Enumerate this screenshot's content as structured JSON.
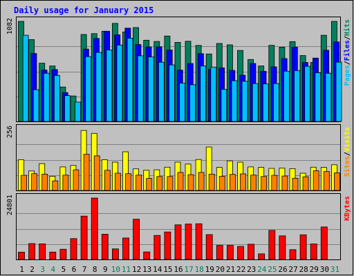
{
  "chart_data": {
    "type": "bar",
    "title": "Daily usage for January 2015",
    "days": [
      "1",
      "2",
      "3",
      "4",
      "5",
      "6",
      "7",
      "8",
      "9",
      "10",
      "11",
      "12",
      "13",
      "14",
      "15",
      "16",
      "17",
      "18",
      "19",
      "20",
      "21",
      "22",
      "23",
      "24",
      "25",
      "26",
      "27",
      "28",
      "29",
      "30",
      "31"
    ],
    "weekend_days": [
      "3",
      "4",
      "10",
      "11",
      "17",
      "18",
      "24",
      "25",
      "31"
    ],
    "panels": [
      {
        "id": "pages-files-hits",
        "ymax": 1082,
        "ymax_label": "1082",
        "series": [
          {
            "name": "Hits",
            "color": "#00805c",
            "values": [
              1082,
              885,
              630,
              600,
              372,
              275,
              940,
              950,
              975,
              1060,
              968,
              1015,
              878,
              865,
              924,
              855,
              867,
              822,
              730,
              843,
              828,
              768,
              670,
              600,
              823,
              803,
              863,
              713,
              638,
              932,
              1082
            ]
          },
          {
            "name": "Files",
            "color": "#0000ff",
            "values": [
              0,
              735,
              556,
              561,
              312,
              0,
              782,
              898,
              975,
              937,
              1009,
              832,
              805,
              807,
              773,
              555,
              627,
              733,
              563,
              580,
              552,
              500,
              627,
              542,
              590,
              680,
              803,
              638,
              685,
              770,
              860
            ]
          },
          {
            "name": "Pages",
            "color": "#00bfff",
            "values": [
              932,
              343,
              520,
              498,
              279,
              210,
              701,
              747,
              774,
              826,
              900,
              710,
              698,
              640,
              611,
              415,
              397,
              600,
              588,
              347,
              440,
              434,
              410,
              406,
              410,
              543,
              550,
              596,
              526,
              520,
              641
            ]
          }
        ]
      },
      {
        "id": "sites-visits",
        "ymax": 256,
        "ymax_label": "256",
        "series": [
          {
            "name": "Visits",
            "color": "#ffff00",
            "values": [
              128,
              81,
              112,
              59,
              98,
              104,
              250,
              238,
              128,
              118,
              161,
              90,
              84,
              86,
              97,
              118,
              110,
              129,
              181,
              96,
              123,
              118,
              98,
              96,
              92,
              93,
              91,
              72,
              97,
              96,
              107
            ]
          },
          {
            "name": "Sites",
            "color": "#ff8000",
            "values": [
              63,
              70,
              68,
              40,
              64,
              86,
              151,
              144,
              84,
              72,
              70,
              64,
              50,
              58,
              58,
              75,
              66,
              75,
              68,
              59,
              67,
              69,
              64,
              58,
              63,
              60,
              51,
              57,
              82,
              79,
              73
            ]
          }
        ]
      },
      {
        "id": "kbytes",
        "ymax": 24801,
        "ymax_label": "24801",
        "series": [
          {
            "name": "KBytes",
            "color": "#ff0000",
            "values": [
              2963,
              6410,
              6300,
              2986,
              4134,
              8420,
              17500,
              24801,
              10200,
              4260,
              8655,
              16240,
              3026,
              9700,
              11090,
              14000,
              14300,
              14400,
              10020,
              5680,
              5680,
              5280,
              6163,
              2263,
              11720,
              9530,
              3950,
              9960,
              6263,
              13120,
              0
            ]
          }
        ]
      }
    ],
    "legends": [
      {
        "panel": "pages-files-hits",
        "parts": [
          {
            "text": "Pages",
            "color": "#00bfff"
          },
          {
            "text": "/",
            "color": "#000000"
          },
          {
            "text": "Files",
            "color": "#0000ff"
          },
          {
            "text": "/",
            "color": "#000000"
          },
          {
            "text": "Hits",
            "color": "#00805c"
          }
        ]
      },
      {
        "panel": "sites-visits",
        "parts": [
          {
            "text": "Sites",
            "color": "#ff8000"
          },
          {
            "text": "/",
            "color": "#000000"
          },
          {
            "text": "Visits",
            "color": "#ffff00"
          }
        ]
      },
      {
        "panel": "kbytes",
        "parts": [
          {
            "text": "KBytes",
            "color": "#ff0000"
          }
        ]
      }
    ],
    "colors": {
      "weekday_label": "#000000",
      "weekend_label": "#00805c",
      "background": "#c0c0c0",
      "title": "#0000ff"
    }
  }
}
